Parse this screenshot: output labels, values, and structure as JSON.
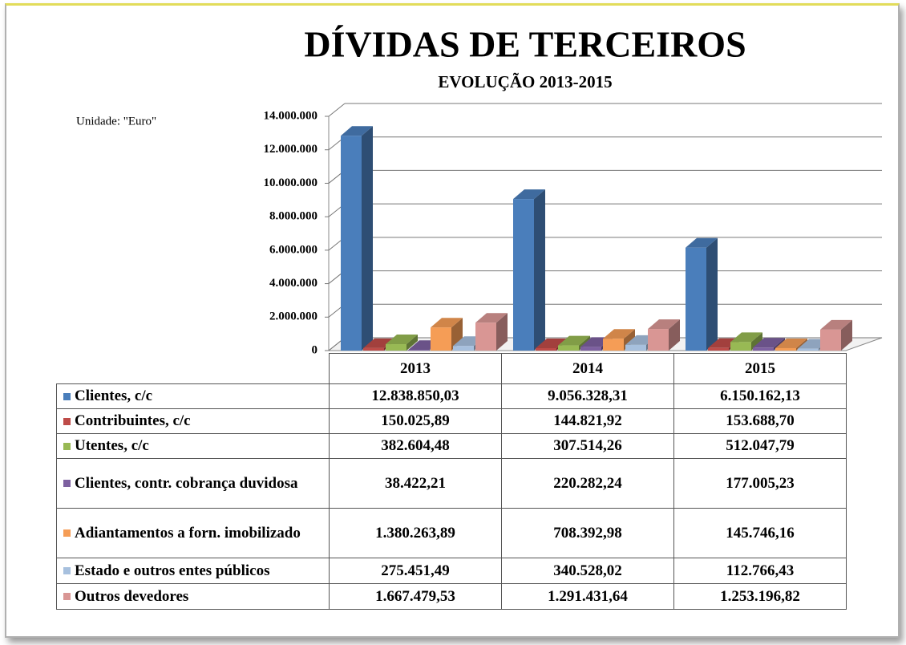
{
  "chart_data": {
    "type": "bar3d",
    "title": "DÍVIDAS DE TERCEIROS",
    "subtitle": "EVOLUÇÃO 2013-2015",
    "unit_note": "Unidade: \"Euro\"",
    "categories": [
      "2013",
      "2014",
      "2015"
    ],
    "ylim": [
      0,
      14000000
    ],
    "yticks": [
      0,
      {
        "value": 2000000,
        "label": "2.000.000"
      },
      {
        "value": 4000000,
        "label": "4.000.000"
      },
      {
        "value": 6000000,
        "label": "6.000.000"
      },
      {
        "value": 8000000,
        "label": "8.000.000"
      },
      {
        "value": 10000000,
        "label": "10.000.000"
      },
      {
        "value": 12000000,
        "label": "12.000.000"
      },
      {
        "value": 14000000,
        "label": "14.000.000"
      }
    ],
    "grid": true,
    "series": [
      {
        "name": "Clientes, c/c",
        "color": "#4a7ebb",
        "values": [
          12838850.03,
          9056328.31,
          6150162.13
        ],
        "value_labels": [
          "12.838.850,03",
          "9.056.328,31",
          "6.150.162,13"
        ]
      },
      {
        "name": "Contribuintes, c/c",
        "color": "#be4b48",
        "values": [
          150025.89,
          144821.92,
          153688.7
        ],
        "value_labels": [
          "150.025,89",
          "144.821,92",
          "153.688,70"
        ]
      },
      {
        "name": "Utentes, c/c",
        "color": "#98b954",
        "values": [
          382604.48,
          307514.26,
          512047.79
        ],
        "value_labels": [
          "382.604,48",
          "307.514,26",
          "512.047,79"
        ]
      },
      {
        "name": "Clientes, contr. cobrança duvidosa",
        "color": "#7d60a0",
        "values": [
          38422.21,
          220282.24,
          177005.23
        ],
        "value_labels": [
          "38.422,21",
          "220.282,24",
          "177.005,23"
        ]
      },
      {
        "name": "Adiantamentos a forn. imobilizado",
        "color": "#f59d56",
        "values": [
          1380263.89,
          708392.98,
          145746.16
        ],
        "value_labels": [
          "1.380.263,89",
          "708.392,98",
          "145.746,16"
        ]
      },
      {
        "name": "Estado e outros entes públicos",
        "color": "#a7c0de",
        "values": [
          275451.49,
          340528.02,
          112766.43
        ],
        "value_labels": [
          "275.451,49",
          "340.528,02",
          "112.766,43"
        ]
      },
      {
        "name": "Outros devedores",
        "color": "#d99694",
        "values": [
          1667479.53,
          1291431.64,
          1253196.82
        ],
        "value_labels": [
          "1.667.479,53",
          "1.291.431,64",
          "1.253.196,82"
        ]
      }
    ]
  }
}
